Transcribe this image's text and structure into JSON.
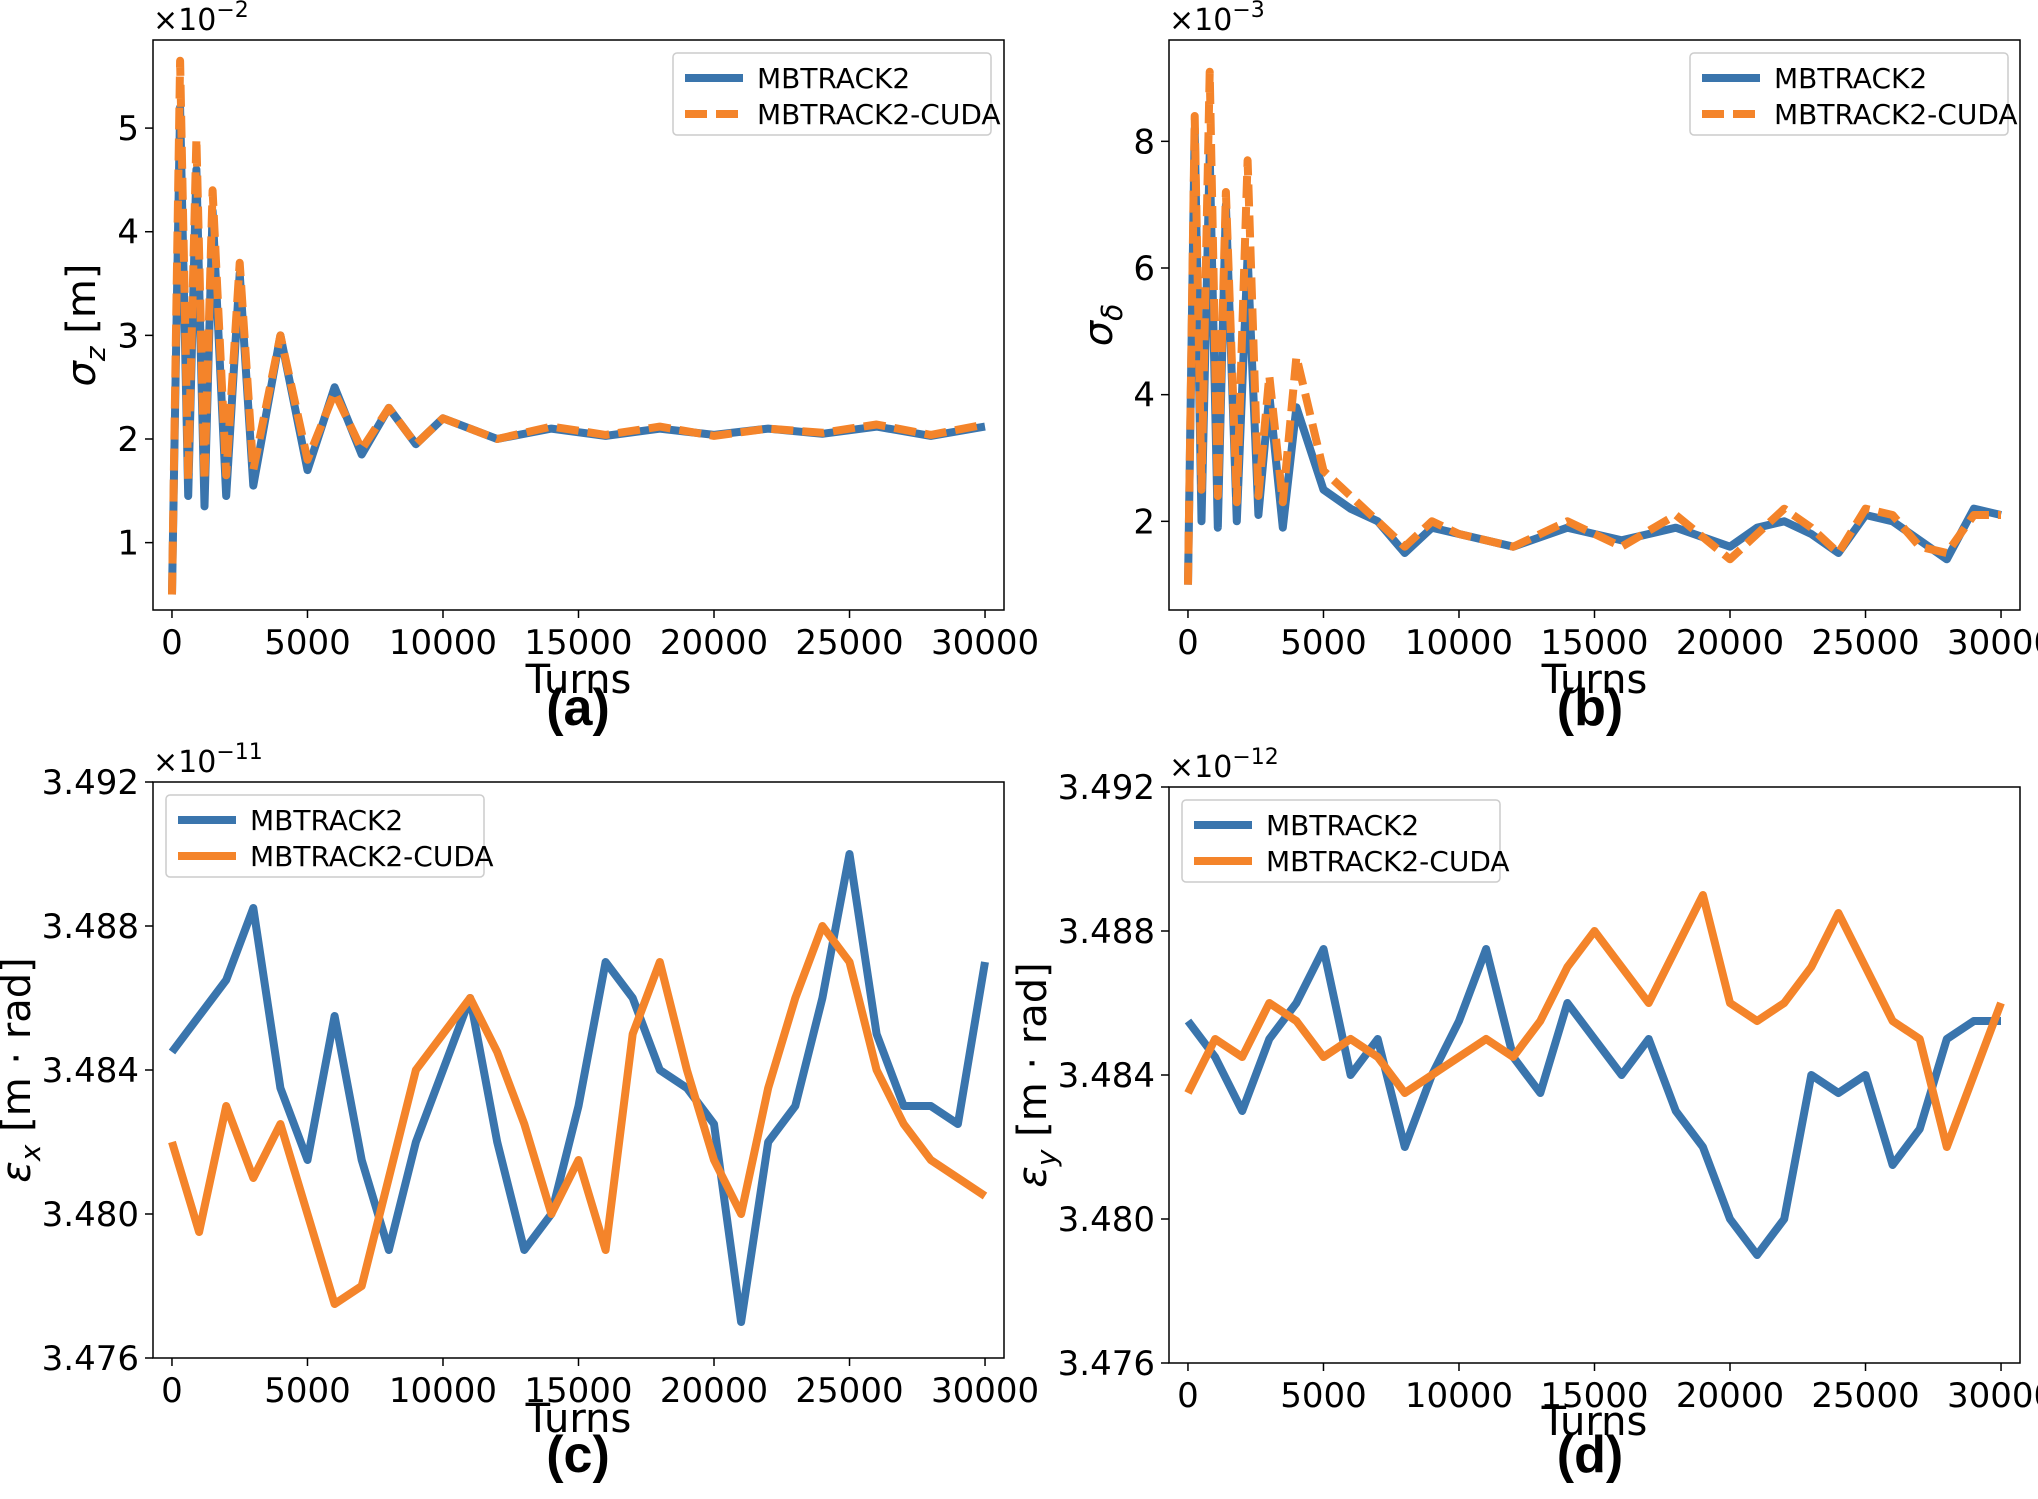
{
  "figure": {
    "colors": {
      "mbtrack2": "#3a75ad",
      "cuda": "#f4842a"
    },
    "legend": [
      "MBTRACK2",
      "MBTRACK2-CUDA"
    ]
  },
  "chart_data": [
    {
      "type": "line",
      "panel_label": "(a)",
      "xlabel": "Turns",
      "ylabel_symbol": "σ",
      "ylabel_sub": "z",
      "ylabel_unit": " [m]",
      "y_scale_label": "×10",
      "y_scale_exp": "−2",
      "xlim": [
        -700,
        30700
      ],
      "ylim": [
        0.35,
        5.85
      ],
      "xticks": [
        0,
        5000,
        10000,
        15000,
        20000,
        25000,
        30000
      ],
      "xtick_labels": [
        "0",
        "5000",
        "10000",
        "15000",
        "20000",
        "25000",
        "30000"
      ],
      "yticks": [
        1,
        2,
        3,
        4,
        5
      ],
      "ytick_labels": [
        "1",
        "2",
        "3",
        "4",
        "5"
      ],
      "legend_position": "top-right",
      "series": [
        {
          "name": "MBTRACK2",
          "style": "solid",
          "x": [
            0,
            300,
            600,
            900,
            1200,
            1500,
            2000,
            2500,
            3000,
            4000,
            5000,
            6000,
            7000,
            8000,
            9000,
            10000,
            12000,
            14000,
            16000,
            18000,
            20000,
            22000,
            24000,
            26000,
            28000,
            30000
          ],
          "y": [
            0.5,
            5.2,
            1.45,
            4.6,
            1.35,
            4.2,
            1.45,
            3.6,
            1.55,
            3.0,
            1.7,
            2.5,
            1.85,
            2.3,
            1.95,
            2.2,
            2.0,
            2.1,
            2.03,
            2.1,
            2.04,
            2.1,
            2.05,
            2.12,
            2.03,
            2.12
          ]
        },
        {
          "name": "MBTRACK2-CUDA",
          "style": "dashed",
          "x": [
            0,
            300,
            600,
            900,
            1200,
            1500,
            2000,
            2500,
            3000,
            4000,
            5000,
            6000,
            7000,
            8000,
            9000,
            10000,
            12000,
            14000,
            16000,
            18000,
            20000,
            22000,
            24000,
            26000,
            28000,
            30000
          ],
          "y": [
            0.5,
            5.65,
            1.6,
            4.9,
            1.6,
            4.4,
            1.65,
            3.7,
            1.7,
            3.0,
            1.8,
            2.45,
            1.9,
            2.3,
            1.95,
            2.2,
            2.0,
            2.12,
            2.04,
            2.12,
            2.03,
            2.1,
            2.06,
            2.14,
            2.04,
            2.14
          ]
        }
      ]
    },
    {
      "type": "line",
      "panel_label": "(b)",
      "xlabel": "Turns",
      "ylabel_symbol": "σ",
      "ylabel_sub": "δ",
      "ylabel_unit": "",
      "y_scale_label": "×10",
      "y_scale_exp": "−3",
      "xlim": [
        -700,
        30700
      ],
      "ylim": [
        0.6,
        9.6
      ],
      "xticks": [
        0,
        5000,
        10000,
        15000,
        20000,
        25000,
        30000
      ],
      "xtick_labels": [
        "0",
        "5000",
        "10000",
        "15000",
        "20000",
        "25000",
        "30000"
      ],
      "yticks": [
        2,
        4,
        6,
        8
      ],
      "ytick_labels": [
        "2",
        "4",
        "6",
        "8"
      ],
      "legend_position": "top-right",
      "series": [
        {
          "name": "MBTRACK2",
          "style": "solid",
          "x": [
            0,
            250,
            500,
            800,
            1100,
            1400,
            1800,
            2200,
            2600,
            3000,
            3500,
            4000,
            5000,
            6000,
            7000,
            8000,
            9000,
            10000,
            12000,
            14000,
            15000,
            16000,
            18000,
            20000,
            21000,
            22000,
            23000,
            24000,
            25000,
            26000,
            27000,
            28000,
            29000,
            30000
          ],
          "y": [
            1.0,
            8.2,
            2.0,
            7.8,
            1.9,
            7.0,
            2.0,
            6.2,
            2.1,
            4.0,
            1.9,
            3.8,
            2.5,
            2.2,
            2.0,
            1.5,
            1.9,
            1.8,
            1.6,
            1.9,
            1.8,
            1.7,
            1.9,
            1.6,
            1.9,
            2.0,
            1.8,
            1.5,
            2.1,
            2.0,
            1.7,
            1.4,
            2.2,
            2.1
          ]
        },
        {
          "name": "MBTRACK2-CUDA",
          "style": "dashed",
          "x": [
            0,
            250,
            500,
            800,
            1100,
            1400,
            1800,
            2200,
            2600,
            3000,
            3500,
            4000,
            5000,
            6000,
            7000,
            8000,
            9000,
            10000,
            12000,
            14000,
            15000,
            16000,
            18000,
            20000,
            21000,
            22000,
            23000,
            24000,
            25000,
            26000,
            27000,
            28000,
            29000,
            30000
          ],
          "y": [
            1.0,
            8.4,
            2.5,
            9.1,
            2.4,
            7.2,
            2.3,
            7.7,
            2.4,
            4.3,
            2.3,
            4.6,
            2.8,
            2.4,
            2.0,
            1.6,
            2.0,
            1.8,
            1.6,
            2.0,
            1.8,
            1.6,
            2.1,
            1.4,
            1.8,
            2.2,
            1.9,
            1.5,
            2.2,
            2.1,
            1.6,
            1.5,
            2.1,
            2.1
          ]
        }
      ]
    },
    {
      "type": "line",
      "panel_label": "(c)",
      "xlabel": "Turns",
      "ylabel_symbol": "ε",
      "ylabel_sub": "x",
      "ylabel_unit": " [m · rad]",
      "y_scale_label": "×10",
      "y_scale_exp": "−11",
      "xlim": [
        -700,
        30700
      ],
      "ylim": [
        3.476,
        3.492
      ],
      "xticks": [
        0,
        5000,
        10000,
        15000,
        20000,
        25000,
        30000
      ],
      "xtick_labels": [
        "0",
        "5000",
        "10000",
        "15000",
        "20000",
        "25000",
        "30000"
      ],
      "yticks": [
        3.476,
        3.48,
        3.484,
        3.488,
        3.492
      ],
      "ytick_labels": [
        "3.476",
        "3.480",
        "3.484",
        "3.488",
        "3.492"
      ],
      "legend_position": "top-left",
      "series": [
        {
          "name": "MBTRACK2",
          "style": "solid",
          "x": [
            0,
            1000,
            2000,
            3000,
            4000,
            5000,
            6000,
            7000,
            8000,
            9000,
            10000,
            11000,
            12000,
            13000,
            14000,
            15000,
            16000,
            17000,
            18000,
            19000,
            20000,
            21000,
            22000,
            23000,
            24000,
            25000,
            26000,
            27000,
            28000,
            29000,
            30000
          ],
          "y": [
            3.4845,
            3.4855,
            3.4865,
            3.4885,
            3.4835,
            3.4815,
            3.4855,
            3.4815,
            3.479,
            3.482,
            3.484,
            3.486,
            3.482,
            3.479,
            3.48,
            3.483,
            3.487,
            3.486,
            3.484,
            3.4835,
            3.4825,
            3.477,
            3.482,
            3.483,
            3.486,
            3.49,
            3.485,
            3.483,
            3.483,
            3.4825,
            3.487
          ]
        },
        {
          "name": "MBTRACK2-CUDA",
          "style": "solid",
          "x": [
            0,
            1000,
            2000,
            3000,
            4000,
            5000,
            6000,
            7000,
            8000,
            9000,
            10000,
            11000,
            12000,
            13000,
            14000,
            15000,
            16000,
            17000,
            18000,
            19000,
            20000,
            21000,
            22000,
            23000,
            24000,
            25000,
            26000,
            27000,
            28000,
            29000,
            30000
          ],
          "y": [
            3.482,
            3.4795,
            3.483,
            3.481,
            3.4825,
            3.48,
            3.4775,
            3.478,
            3.481,
            3.484,
            3.485,
            3.486,
            3.4845,
            3.4825,
            3.48,
            3.4815,
            3.479,
            3.485,
            3.487,
            3.484,
            3.4815,
            3.48,
            3.4835,
            3.486,
            3.488,
            3.487,
            3.484,
            3.4825,
            3.4815,
            3.481,
            3.4805
          ]
        }
      ]
    },
    {
      "type": "line",
      "panel_label": "(d)",
      "xlabel": "Turns",
      "ylabel_symbol": "ε",
      "ylabel_sub": "y",
      "ylabel_unit": " [m · rad]",
      "y_scale_label": "×10",
      "y_scale_exp": "−12",
      "xlim": [
        -700,
        30700
      ],
      "ylim": [
        3.476,
        3.492
      ],
      "xticks": [
        0,
        5000,
        10000,
        15000,
        20000,
        25000,
        30000
      ],
      "xtick_labels": [
        "0",
        "5000",
        "10000",
        "15000",
        "20000",
        "25000",
        "30000"
      ],
      "yticks": [
        3.476,
        3.48,
        3.484,
        3.488,
        3.492
      ],
      "ytick_labels": [
        "3.476",
        "3.480",
        "3.484",
        "3.488",
        "3.492"
      ],
      "legend_position": "top-left",
      "series": [
        {
          "name": "MBTRACK2",
          "style": "solid",
          "x": [
            0,
            1000,
            2000,
            3000,
            4000,
            5000,
            6000,
            7000,
            8000,
            9000,
            10000,
            11000,
            12000,
            13000,
            14000,
            15000,
            16000,
            17000,
            18000,
            19000,
            20000,
            21000,
            22000,
            23000,
            24000,
            25000,
            26000,
            27000,
            28000,
            29000,
            30000
          ],
          "y": [
            3.4855,
            3.4845,
            3.483,
            3.485,
            3.486,
            3.4875,
            3.484,
            3.485,
            3.482,
            3.484,
            3.4855,
            3.4875,
            3.4845,
            3.4835,
            3.486,
            3.485,
            3.484,
            3.485,
            3.483,
            3.482,
            3.48,
            3.479,
            3.48,
            3.484,
            3.4835,
            3.484,
            3.4815,
            3.4825,
            3.485,
            3.4855,
            3.4855
          ]
        },
        {
          "name": "MBTRACK2-CUDA",
          "style": "solid",
          "x": [
            0,
            1000,
            2000,
            3000,
            4000,
            5000,
            6000,
            7000,
            8000,
            9000,
            10000,
            11000,
            12000,
            13000,
            14000,
            15000,
            16000,
            17000,
            18000,
            19000,
            20000,
            21000,
            22000,
            23000,
            24000,
            25000,
            26000,
            27000,
            28000,
            29000,
            30000
          ],
          "y": [
            3.4835,
            3.485,
            3.4845,
            3.486,
            3.4855,
            3.4845,
            3.485,
            3.4845,
            3.4835,
            3.484,
            3.4845,
            3.485,
            3.4845,
            3.4855,
            3.487,
            3.488,
            3.487,
            3.486,
            3.4875,
            3.489,
            3.486,
            3.4855,
            3.486,
            3.487,
            3.4885,
            3.487,
            3.4855,
            3.485,
            3.482,
            3.484,
            3.486
          ]
        }
      ]
    }
  ]
}
